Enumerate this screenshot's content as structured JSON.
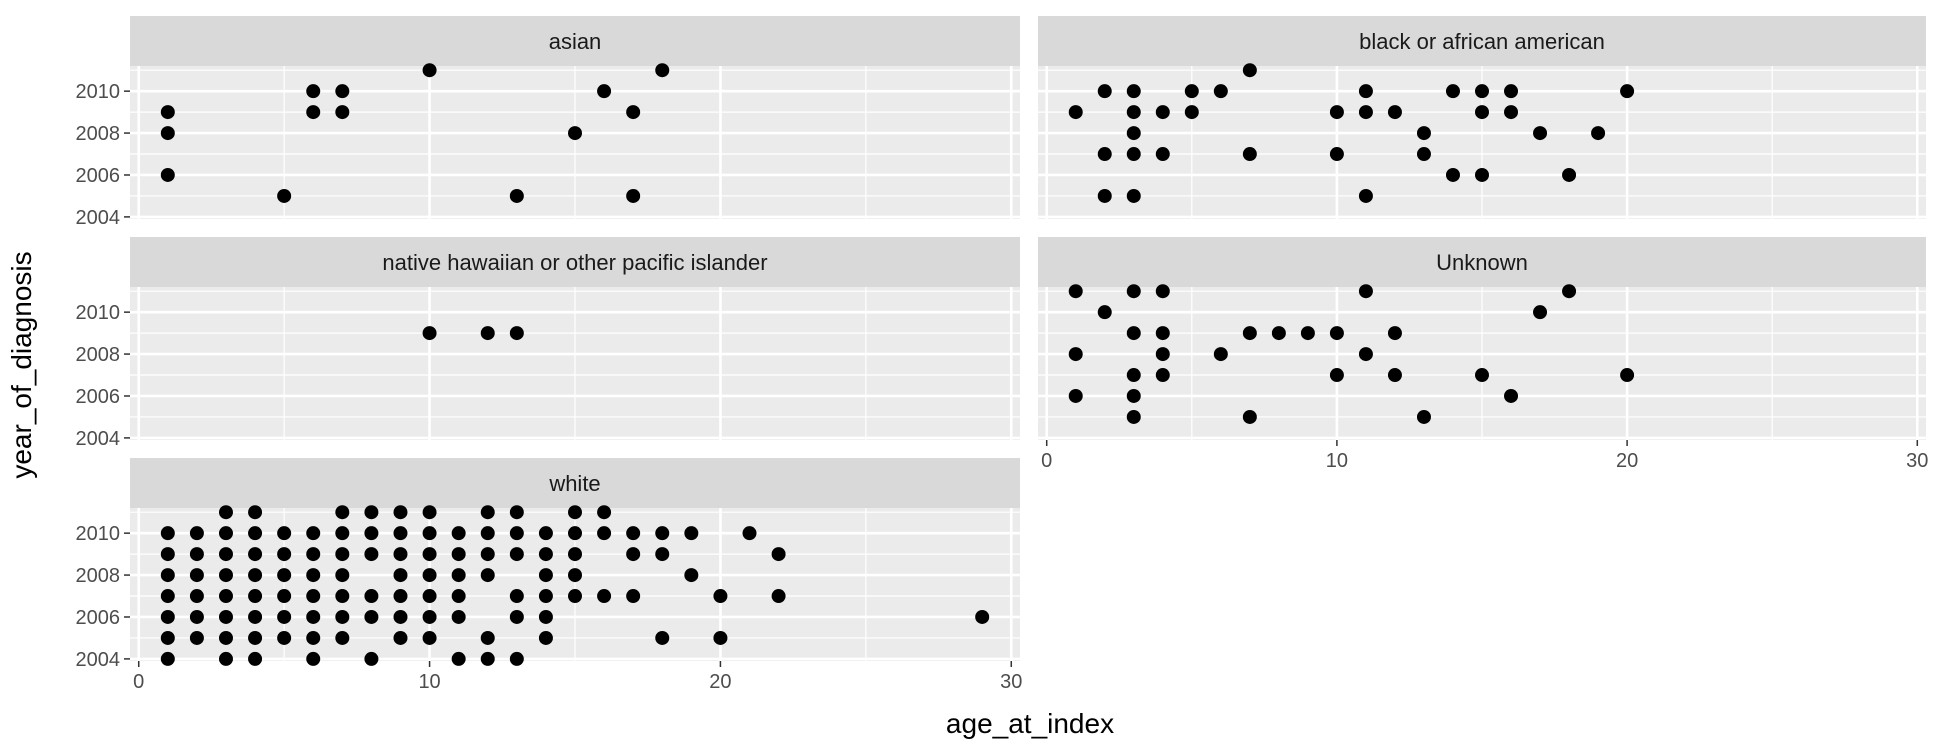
{
  "chart_data": {
    "type": "scatter",
    "facet_layout": "wrap",
    "xlabel": "age_at_index",
    "ylabel": "year_of_diagnosis",
    "xlim": [
      0,
      30
    ],
    "ylim": [
      2004,
      2011
    ],
    "x_ticks": [
      0,
      10,
      20,
      30
    ],
    "y_ticks": [
      2004,
      2006,
      2008,
      2010
    ],
    "grid": true,
    "colors": {
      "panel_bg": "#ebebeb",
      "strip_bg": "#d9d9d9",
      "grid": "#ffffff",
      "point": "#000000"
    },
    "panels": [
      {
        "name": "asian",
        "points": [
          [
            1,
            2009
          ],
          [
            1,
            2008
          ],
          [
            1,
            2006
          ],
          [
            5,
            2005
          ],
          [
            6,
            2010
          ],
          [
            6,
            2009
          ],
          [
            7,
            2010
          ],
          [
            7,
            2009
          ],
          [
            10,
            2011
          ],
          [
            13,
            2005
          ],
          [
            15,
            2008
          ],
          [
            16,
            2010
          ],
          [
            17,
            2009
          ],
          [
            17,
            2005
          ],
          [
            18,
            2011
          ]
        ]
      },
      {
        "name": "black or african american",
        "points": [
          [
            1,
            2009
          ],
          [
            2,
            2010
          ],
          [
            2,
            2007
          ],
          [
            2,
            2005
          ],
          [
            3,
            2010
          ],
          [
            3,
            2009
          ],
          [
            3,
            2008
          ],
          [
            3,
            2007
          ],
          [
            3,
            2005
          ],
          [
            4,
            2009
          ],
          [
            4,
            2007
          ],
          [
            5,
            2010
          ],
          [
            5,
            2009
          ],
          [
            6,
            2010
          ],
          [
            7,
            2011
          ],
          [
            7,
            2007
          ],
          [
            10,
            2009
          ],
          [
            10,
            2007
          ],
          [
            11,
            2010
          ],
          [
            11,
            2009
          ],
          [
            11,
            2005
          ],
          [
            12,
            2009
          ],
          [
            13,
            2008
          ],
          [
            13,
            2007
          ],
          [
            14,
            2010
          ],
          [
            14,
            2006
          ],
          [
            15,
            2010
          ],
          [
            15,
            2009
          ],
          [
            15,
            2006
          ],
          [
            16,
            2010
          ],
          [
            16,
            2009
          ],
          [
            17,
            2008
          ],
          [
            18,
            2006
          ],
          [
            19,
            2008
          ],
          [
            20,
            2010
          ]
        ]
      },
      {
        "name": "native hawaiian or other pacific islander",
        "points": [
          [
            10,
            2009
          ],
          [
            12,
            2009
          ],
          [
            13,
            2009
          ]
        ]
      },
      {
        "name": "Unknown",
        "points": [
          [
            1,
            2011
          ],
          [
            1,
            2008
          ],
          [
            1,
            2006
          ],
          [
            2,
            2010
          ],
          [
            3,
            2011
          ],
          [
            3,
            2009
          ],
          [
            3,
            2007
          ],
          [
            3,
            2006
          ],
          [
            3,
            2005
          ],
          [
            4,
            2011
          ],
          [
            4,
            2009
          ],
          [
            4,
            2008
          ],
          [
            4,
            2007
          ],
          [
            6,
            2008
          ],
          [
            7,
            2009
          ],
          [
            7,
            2005
          ],
          [
            8,
            2009
          ],
          [
            9,
            2009
          ],
          [
            10,
            2009
          ],
          [
            10,
            2007
          ],
          [
            11,
            2011
          ],
          [
            11,
            2008
          ],
          [
            12,
            2009
          ],
          [
            12,
            2007
          ],
          [
            13,
            2005
          ],
          [
            15,
            2007
          ],
          [
            16,
            2006
          ],
          [
            17,
            2010
          ],
          [
            18,
            2011
          ],
          [
            20,
            2007
          ]
        ]
      },
      {
        "name": "white",
        "points": [
          [
            1,
            2010
          ],
          [
            1,
            2009
          ],
          [
            1,
            2008
          ],
          [
            1,
            2007
          ],
          [
            1,
            2006
          ],
          [
            1,
            2005
          ],
          [
            1,
            2004
          ],
          [
            2,
            2010
          ],
          [
            2,
            2009
          ],
          [
            2,
            2008
          ],
          [
            2,
            2007
          ],
          [
            2,
            2006
          ],
          [
            2,
            2005
          ],
          [
            3,
            2011
          ],
          [
            3,
            2010
          ],
          [
            3,
            2009
          ],
          [
            3,
            2008
          ],
          [
            3,
            2007
          ],
          [
            3,
            2006
          ],
          [
            3,
            2005
          ],
          [
            3,
            2004
          ],
          [
            4,
            2011
          ],
          [
            4,
            2010
          ],
          [
            4,
            2009
          ],
          [
            4,
            2008
          ],
          [
            4,
            2007
          ],
          [
            4,
            2006
          ],
          [
            4,
            2005
          ],
          [
            4,
            2004
          ],
          [
            5,
            2010
          ],
          [
            5,
            2009
          ],
          [
            5,
            2008
          ],
          [
            5,
            2007
          ],
          [
            5,
            2006
          ],
          [
            5,
            2005
          ],
          [
            6,
            2010
          ],
          [
            6,
            2009
          ],
          [
            6,
            2008
          ],
          [
            6,
            2007
          ],
          [
            6,
            2006
          ],
          [
            6,
            2005
          ],
          [
            6,
            2004
          ],
          [
            7,
            2011
          ],
          [
            7,
            2010
          ],
          [
            7,
            2009
          ],
          [
            7,
            2008
          ],
          [
            7,
            2007
          ],
          [
            7,
            2006
          ],
          [
            7,
            2005
          ],
          [
            8,
            2011
          ],
          [
            8,
            2010
          ],
          [
            8,
            2009
          ],
          [
            8,
            2007
          ],
          [
            8,
            2006
          ],
          [
            8,
            2004
          ],
          [
            9,
            2011
          ],
          [
            9,
            2010
          ],
          [
            9,
            2009
          ],
          [
            9,
            2008
          ],
          [
            9,
            2007
          ],
          [
            9,
            2006
          ],
          [
            9,
            2005
          ],
          [
            10,
            2011
          ],
          [
            10,
            2010
          ],
          [
            10,
            2009
          ],
          [
            10,
            2008
          ],
          [
            10,
            2007
          ],
          [
            10,
            2006
          ],
          [
            10,
            2005
          ],
          [
            11,
            2010
          ],
          [
            11,
            2009
          ],
          [
            11,
            2008
          ],
          [
            11,
            2007
          ],
          [
            11,
            2006
          ],
          [
            11,
            2004
          ],
          [
            12,
            2011
          ],
          [
            12,
            2010
          ],
          [
            12,
            2009
          ],
          [
            12,
            2008
          ],
          [
            12,
            2005
          ],
          [
            12,
            2004
          ],
          [
            13,
            2011
          ],
          [
            13,
            2010
          ],
          [
            13,
            2009
          ],
          [
            13,
            2007
          ],
          [
            13,
            2006
          ],
          [
            13,
            2004
          ],
          [
            14,
            2010
          ],
          [
            14,
            2009
          ],
          [
            14,
            2008
          ],
          [
            14,
            2007
          ],
          [
            14,
            2006
          ],
          [
            14,
            2005
          ],
          [
            15,
            2011
          ],
          [
            15,
            2010
          ],
          [
            15,
            2009
          ],
          [
            15,
            2008
          ],
          [
            15,
            2007
          ],
          [
            16,
            2011
          ],
          [
            16,
            2010
          ],
          [
            16,
            2007
          ],
          [
            17,
            2010
          ],
          [
            17,
            2009
          ],
          [
            17,
            2007
          ],
          [
            18,
            2010
          ],
          [
            18,
            2009
          ],
          [
            18,
            2005
          ],
          [
            19,
            2010
          ],
          [
            19,
            2008
          ],
          [
            20,
            2007
          ],
          [
            20,
            2005
          ],
          [
            21,
            2010
          ],
          [
            22,
            2009
          ],
          [
            22,
            2007
          ],
          [
            29,
            2006
          ]
        ]
      }
    ]
  }
}
